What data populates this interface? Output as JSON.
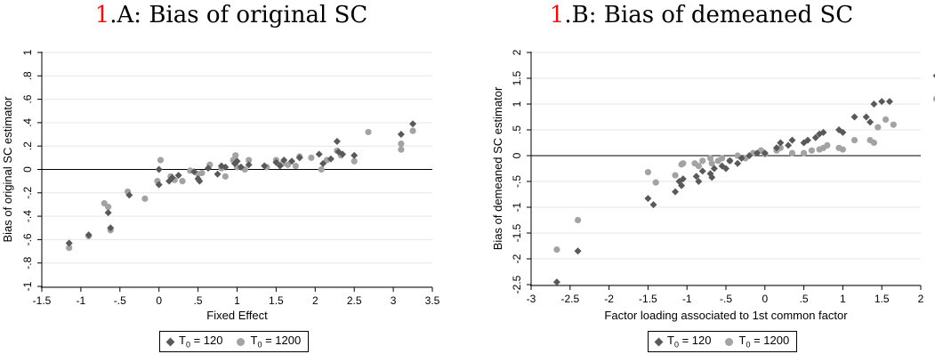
{
  "colors": {
    "series_1": "#595959",
    "series_2": "#a3a3a3",
    "title_number": "#e3130f",
    "grid": "#e6e6e6"
  },
  "panels": [
    {
      "title_number": "1",
      "title_text": ".A: Bias of original SC"
    },
    {
      "title_number": "1",
      "title_text": ".B: Bias of demeaned SC"
    }
  ],
  "legend": [
    {
      "symbol": "diamond-icon",
      "prefix": "T",
      "sub": "0",
      "suffix": " = 120"
    },
    {
      "symbol": "circle-icon",
      "prefix": "T",
      "sub": "0",
      "suffix": " = 1200"
    }
  ],
  "chart_data": [
    {
      "type": "scatter",
      "title": "1.A: Bias of original SC",
      "xlabel": "Fixed Effect",
      "ylabel": "Bias of original SC estimator",
      "xlim": [
        -1.5,
        3.5
      ],
      "ylim": [
        -1,
        1
      ],
      "xticks": [
        -1.5,
        -1,
        -0.5,
        0,
        0.5,
        1,
        1.5,
        2,
        2.5,
        3,
        3.5
      ],
      "xtick_labels": [
        "-1.5",
        "-1",
        "-.5",
        "0",
        ".5",
        "1",
        "1.5",
        "2",
        "2.5",
        "3",
        "3.5"
      ],
      "yticks": [
        -1,
        -0.8,
        -0.6,
        -0.4,
        -0.2,
        0,
        0.2,
        0.4,
        0.6,
        0.8,
        1
      ],
      "ytick_labels": [
        "-1",
        "-.8",
        "-.6",
        "-.4",
        "-.2",
        "0",
        ".2",
        ".4",
        ".6",
        ".8",
        "1"
      ],
      "grid": true,
      "reference_line_y": 0,
      "legend_position": "bottom",
      "series": [
        {
          "name": "T0 = 120",
          "marker": "diamond",
          "points": [
            [
              -1.15,
              -0.63
            ],
            [
              -0.9,
              -0.56
            ],
            [
              -0.65,
              -0.37
            ],
            [
              -0.62,
              -0.5
            ],
            [
              -0.38,
              -0.22
            ],
            [
              0,
              -0.13
            ],
            [
              0,
              0.0
            ],
            [
              0.13,
              -0.1
            ],
            [
              0.17,
              -0.07
            ],
            [
              0.25,
              -0.05
            ],
            [
              0.45,
              -0.02
            ],
            [
              0.5,
              -0.08
            ],
            [
              0.52,
              -0.1
            ],
            [
              0.63,
              0.01
            ],
            [
              0.75,
              -0.04
            ],
            [
              0.8,
              0.03
            ],
            [
              0.85,
              0.02
            ],
            [
              0.97,
              0.05
            ],
            [
              1.0,
              0.07
            ],
            [
              1.05,
              0.02
            ],
            [
              1.15,
              0.04
            ],
            [
              1.35,
              0.03
            ],
            [
              1.5,
              0.06
            ],
            [
              1.55,
              0.03
            ],
            [
              1.6,
              0.08
            ],
            [
              1.7,
              0.07
            ],
            [
              1.8,
              0.1
            ],
            [
              2.05,
              0.13
            ],
            [
              2.1,
              0.05
            ],
            [
              2.2,
              0.09
            ],
            [
              2.28,
              0.24
            ],
            [
              2.3,
              0.15
            ],
            [
              2.35,
              0.13
            ],
            [
              2.5,
              0.12
            ],
            [
              3.1,
              0.3
            ],
            [
              3.25,
              0.39
            ]
          ]
        },
        {
          "name": "T0 = 1200",
          "marker": "circle",
          "points": [
            [
              -1.15,
              -0.67
            ],
            [
              -0.9,
              -0.57
            ],
            [
              -0.7,
              -0.29
            ],
            [
              -0.65,
              -0.32
            ],
            [
              -0.62,
              -0.52
            ],
            [
              -0.4,
              -0.19
            ],
            [
              -0.18,
              -0.25
            ],
            [
              -0.02,
              -0.1
            ],
            [
              0.02,
              0.08
            ],
            [
              0.15,
              -0.06
            ],
            [
              0.2,
              -0.09
            ],
            [
              0.3,
              -0.1
            ],
            [
              0.4,
              -0.01
            ],
            [
              0.5,
              -0.04
            ],
            [
              0.55,
              -0.03
            ],
            [
              0.65,
              0.04
            ],
            [
              0.8,
              0.01
            ],
            [
              0.85,
              -0.06
            ],
            [
              0.95,
              0.08
            ],
            [
              0.98,
              0.12
            ],
            [
              1.0,
              0.02
            ],
            [
              1.1,
              0.0
            ],
            [
              1.15,
              0.08
            ],
            [
              1.38,
              0.02
            ],
            [
              1.5,
              0.08
            ],
            [
              1.58,
              0.05
            ],
            [
              1.65,
              0.04
            ],
            [
              1.75,
              0.03
            ],
            [
              1.8,
              0.11
            ],
            [
              1.95,
              0.1
            ],
            [
              2.08,
              0.0
            ],
            [
              2.15,
              0.08
            ],
            [
              2.28,
              0.16
            ],
            [
              2.33,
              0.12
            ],
            [
              2.5,
              0.07
            ],
            [
              2.68,
              0.32
            ],
            [
              3.1,
              0.22
            ],
            [
              3.1,
              0.17
            ],
            [
              3.25,
              0.33
            ]
          ]
        }
      ]
    },
    {
      "type": "scatter",
      "title": "1.B: Bias of demeaned SC",
      "xlabel": "Factor loading associated to 1st common factor",
      "ylabel": "Bias of demeaned SC estimator",
      "xlim": [
        -3,
        2
      ],
      "ylim": [
        -2.5,
        2
      ],
      "xticks": [
        -3,
        -2.5,
        -2,
        -1.5,
        -1,
        -0.5,
        0,
        0.5,
        1,
        1.5,
        2
      ],
      "xtick_labels": [
        "-3",
        "-2.5",
        "-2",
        "-1.5",
        "-1",
        "-.5",
        "0",
        ".5",
        "1",
        "1.5",
        "2"
      ],
      "yticks": [
        -2.5,
        -2,
        -1.5,
        -1,
        -0.5,
        0,
        0.5,
        1,
        1.5,
        2
      ],
      "ytick_labels": [
        "-2.5",
        "-2",
        "-1.5",
        "-1",
        "-.5",
        "0",
        ".5",
        "1",
        "1.5",
        "2"
      ],
      "grid": true,
      "reference_line_y": 0,
      "legend_position": "bottom",
      "series": [
        {
          "name": "T0 = 120",
          "marker": "diamond",
          "points": [
            [
              -2.67,
              -2.45
            ],
            [
              -2.4,
              -1.85
            ],
            [
              -1.5,
              -0.83
            ],
            [
              -1.43,
              -0.95
            ],
            [
              -1.15,
              -0.7
            ],
            [
              -1.1,
              -0.5
            ],
            [
              -1.07,
              -0.58
            ],
            [
              -1.05,
              -0.45
            ],
            [
              -0.88,
              -0.4
            ],
            [
              -0.85,
              -0.5
            ],
            [
              -0.8,
              -0.3
            ],
            [
              -0.7,
              -0.35
            ],
            [
              -0.68,
              -0.42
            ],
            [
              -0.65,
              -0.25
            ],
            [
              -0.55,
              -0.2
            ],
            [
              -0.5,
              -0.25
            ],
            [
              -0.45,
              -0.1
            ],
            [
              -0.35,
              -0.15
            ],
            [
              -0.3,
              -0.05
            ],
            [
              -0.2,
              0.0
            ],
            [
              -0.1,
              0.05
            ],
            [
              0.0,
              0.05
            ],
            [
              0.15,
              0.15
            ],
            [
              0.2,
              0.25
            ],
            [
              0.3,
              0.2
            ],
            [
              0.35,
              0.3
            ],
            [
              0.5,
              0.25
            ],
            [
              0.55,
              0.3
            ],
            [
              0.65,
              0.35
            ],
            [
              0.7,
              0.42
            ],
            [
              0.75,
              0.45
            ],
            [
              0.95,
              0.5
            ],
            [
              1.0,
              0.45
            ],
            [
              1.15,
              0.75
            ],
            [
              1.3,
              0.75
            ],
            [
              1.35,
              0.65
            ],
            [
              1.4,
              1.0
            ],
            [
              1.5,
              1.05
            ],
            [
              1.6,
              1.05
            ],
            [
              2.2,
              1.55
            ]
          ]
        },
        {
          "name": "T0 = 1200",
          "marker": "circle",
          "points": [
            [
              -2.67,
              -1.82
            ],
            [
              -2.4,
              -1.25
            ],
            [
              -1.5,
              -0.32
            ],
            [
              -1.4,
              -0.52
            ],
            [
              -1.15,
              -0.38
            ],
            [
              -1.07,
              -0.17
            ],
            [
              -1.05,
              -0.15
            ],
            [
              -0.9,
              -0.15
            ],
            [
              -0.85,
              -0.2
            ],
            [
              -0.8,
              -0.1
            ],
            [
              -0.7,
              -0.05
            ],
            [
              -0.68,
              -0.15
            ],
            [
              -0.6,
              -0.1
            ],
            [
              -0.55,
              -0.05
            ],
            [
              -0.45,
              -0.1
            ],
            [
              -0.35,
              0.0
            ],
            [
              -0.25,
              -0.05
            ],
            [
              -0.15,
              0.05
            ],
            [
              -0.05,
              0.1
            ],
            [
              0.0,
              0.03
            ],
            [
              0.15,
              0.1
            ],
            [
              0.2,
              0.15
            ],
            [
              0.35,
              0.05
            ],
            [
              0.5,
              0.05
            ],
            [
              0.6,
              0.1
            ],
            [
              0.7,
              0.12
            ],
            [
              0.75,
              0.15
            ],
            [
              0.8,
              0.2
            ],
            [
              0.95,
              0.15
            ],
            [
              1.0,
              0.12
            ],
            [
              1.15,
              0.3
            ],
            [
              1.35,
              0.3
            ],
            [
              1.4,
              0.25
            ],
            [
              1.45,
              0.55
            ],
            [
              1.55,
              0.7
            ],
            [
              1.65,
              0.6
            ],
            [
              2.2,
              1.1
            ]
          ]
        }
      ]
    }
  ]
}
